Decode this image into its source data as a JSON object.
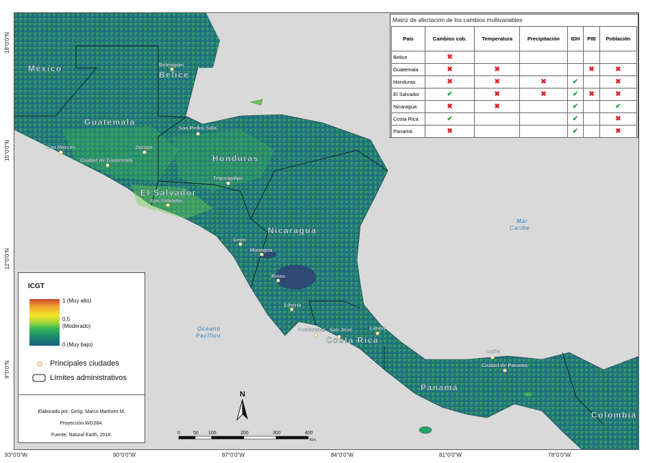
{
  "map": {
    "countries": [
      "México",
      "Belice",
      "Guatemala",
      "Honduras",
      "El Salvador",
      "Nicaragua",
      "Costa Rica",
      "Panamá",
      "Colombia"
    ],
    "cities": [
      "Belmopán",
      "San Pedro Sula",
      "San Marcos",
      "Zacapa",
      "Ciudad de Guatemala",
      "Tegucigalpa",
      "San Salvador",
      "León",
      "Managua",
      "Rivas",
      "Liberia",
      "Limon",
      "Puntarenas",
      "San José",
      "Colón",
      "Ciudad de Panamá"
    ],
    "seas": {
      "caribe_line1": "Mar",
      "caribe_line2": "Caribe",
      "pacifico_line1": "Océano",
      "pacifico_line2": "Pacífico"
    },
    "lat_ticks": [
      "18°0'0\"N",
      "15°0'0\"N",
      "12°0'0\"N",
      "9°0'0\"N"
    ],
    "lon_ticks": [
      "93°0'0\"W",
      "90°0'0\"W",
      "87°0'0\"W",
      "84°0'0\"W",
      "81°0'0\"W",
      "78°0'0\"W"
    ],
    "colors": {
      "background": "#d9d9d9",
      "land_low": "#1a5e84",
      "land_mid": "#3bbb52",
      "land_high": "#c8442a",
      "city_marker": "#f0d060"
    }
  },
  "matrix": {
    "title": "Matriz de afectación de los cambios multivariables",
    "headers": [
      "País",
      "Cambios cob.",
      "Temperatura",
      "Precipitación",
      "IDH",
      "PIB",
      "Población"
    ],
    "rows": [
      {
        "country": "Belice",
        "cells": [
          "x",
          "",
          "",
          "",
          "",
          ""
        ]
      },
      {
        "country": "Guatemala",
        "cells": [
          "x",
          "x",
          "",
          "",
          "x",
          "x"
        ]
      },
      {
        "country": "Honduras",
        "cells": [
          "x",
          "x",
          "x",
          "ok",
          "",
          "x"
        ]
      },
      {
        "country": "El Salvador",
        "cells": [
          "ok",
          "x",
          "x",
          "ok",
          "x",
          "x"
        ]
      },
      {
        "country": "Nicaragua",
        "cells": [
          "x",
          "x",
          "",
          "ok",
          "",
          "ok"
        ]
      },
      {
        "country": "Costa Rica",
        "cells": [
          "ok",
          "",
          "",
          "ok",
          "",
          "x"
        ]
      },
      {
        "country": "Panamá",
        "cells": [
          "x",
          "",
          "",
          "ok",
          "",
          "x"
        ]
      }
    ],
    "symbols": {
      "x": "✖",
      "ok": "✔"
    }
  },
  "legend": {
    "title": "ICGT",
    "ramp_high": "1 (Muy alto)",
    "ramp_mid_1": "0,5",
    "ramp_mid_2": "(Moderado)",
    "ramp_low": "0 (Muy bajo)",
    "cities_label": "Principales ciudades",
    "admin_label": "Límites administrativos",
    "credit_author": "Elaborado por: Geóg. Marco Martínez M.",
    "credit_projection": "Proyección WGS84.",
    "credit_source": "Fuente: Natural Earth, 2018."
  },
  "north": {
    "label": "N"
  },
  "scale": {
    "ticks": [
      "0",
      "50",
      "100",
      "200",
      "300",
      "400"
    ],
    "unit": "Km"
  }
}
